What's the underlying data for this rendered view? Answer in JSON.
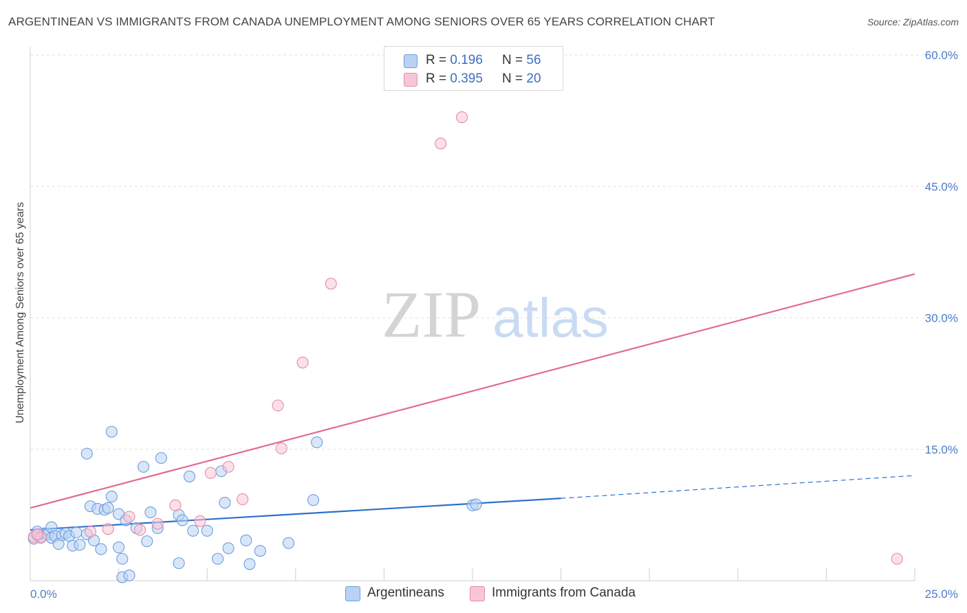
{
  "header": {
    "title": "ARGENTINEAN VS IMMIGRANTS FROM CANADA UNEMPLOYMENT AMONG SENIORS OVER 65 YEARS CORRELATION CHART",
    "source": "Source: ZipAtlas.com"
  },
  "watermark": {
    "zip": "ZIP",
    "atlas": "atlas"
  },
  "legend": {
    "r_label": "R =",
    "n_label": "N =",
    "series": [
      {
        "name": "Argentineans",
        "r": "0.196",
        "n": "56",
        "color": "#6b9ee0",
        "fill": "#b9d2f3"
      },
      {
        "name": "Immigrants from Canada",
        "r": "0.395",
        "n": "20",
        "color": "#e889aa",
        "fill": "#f7c6d6"
      }
    ]
  },
  "chart_data": {
    "type": "scatter",
    "title": "ARGENTINEAN VS IMMIGRANTS FROM CANADA UNEMPLOYMENT AMONG SENIORS OVER 65 YEARS CORRELATION CHART",
    "xlabel": "",
    "ylabel": "Unemployment Among Seniors over 65 years",
    "xlim": [
      0,
      25
    ],
    "ylim": [
      0,
      60
    ],
    "x_ticks": [
      "0.0%",
      "25.0%"
    ],
    "y_ticks": [
      {
        "value": 15,
        "label": "15.0%"
      },
      {
        "value": 30,
        "label": "30.0%"
      },
      {
        "value": 45,
        "label": "45.0%"
      },
      {
        "value": 60,
        "label": "60.0%"
      }
    ],
    "gridlines": [
      15,
      30,
      45,
      60
    ],
    "series": [
      {
        "name": "Argentineans",
        "r": 0.196,
        "n": 56,
        "points": [
          [
            0.1,
            4.8
          ],
          [
            0.2,
            5.2
          ],
          [
            0.3,
            5.0
          ],
          [
            0.4,
            5.4
          ],
          [
            0.5,
            5.3
          ],
          [
            0.6,
            6.1
          ],
          [
            0.6,
            4.9
          ],
          [
            0.7,
            5.1
          ],
          [
            0.8,
            4.2
          ],
          [
            0.9,
            5.2
          ],
          [
            1.0,
            5.4
          ],
          [
            1.1,
            5.1
          ],
          [
            1.2,
            4.0
          ],
          [
            1.3,
            5.5
          ],
          [
            1.6,
            5.3
          ],
          [
            1.4,
            4.1
          ],
          [
            1.6,
            14.5
          ],
          [
            1.7,
            8.5
          ],
          [
            1.8,
            4.6
          ],
          [
            1.9,
            8.2
          ],
          [
            2.0,
            3.6
          ],
          [
            2.1,
            8.1
          ],
          [
            2.2,
            8.3
          ],
          [
            2.3,
            9.6
          ],
          [
            2.3,
            17.0
          ],
          [
            2.5,
            7.6
          ],
          [
            2.5,
            3.8
          ],
          [
            2.6,
            0.4
          ],
          [
            2.6,
            2.5
          ],
          [
            2.7,
            6.9
          ],
          [
            2.8,
            0.6
          ],
          [
            3.0,
            6.0
          ],
          [
            3.2,
            13.0
          ],
          [
            3.3,
            4.5
          ],
          [
            3.4,
            7.8
          ],
          [
            3.6,
            6.0
          ],
          [
            3.7,
            14.0
          ],
          [
            4.2,
            2.0
          ],
          [
            4.2,
            7.5
          ],
          [
            4.3,
            6.9
          ],
          [
            4.5,
            11.9
          ],
          [
            4.6,
            5.7
          ],
          [
            5.0,
            5.7
          ],
          [
            5.3,
            2.5
          ],
          [
            5.4,
            12.5
          ],
          [
            5.5,
            8.9
          ],
          [
            5.6,
            3.7
          ],
          [
            6.1,
            4.6
          ],
          [
            6.2,
            1.9
          ],
          [
            6.5,
            3.4
          ],
          [
            7.3,
            4.3
          ],
          [
            8.0,
            9.2
          ],
          [
            8.1,
            15.8
          ],
          [
            12.5,
            8.6
          ],
          [
            12.6,
            8.7
          ],
          [
            0.2,
            5.6
          ]
        ],
        "trend_solid": [
          [
            0,
            5.8
          ],
          [
            15,
            9.4
          ]
        ],
        "trend_dashed": [
          [
            15,
            9.4
          ],
          [
            25,
            12.0
          ]
        ]
      },
      {
        "name": "Immigrants from Canada",
        "r": 0.395,
        "n": 20,
        "points": [
          [
            0.1,
            5.0
          ],
          [
            0.3,
            4.9
          ],
          [
            1.7,
            5.6
          ],
          [
            2.2,
            5.9
          ],
          [
            2.8,
            7.3
          ],
          [
            3.1,
            5.8
          ],
          [
            3.6,
            6.5
          ],
          [
            4.1,
            8.6
          ],
          [
            4.8,
            6.8
          ],
          [
            5.1,
            12.3
          ],
          [
            5.6,
            13.0
          ],
          [
            6.0,
            9.3
          ],
          [
            7.0,
            20.0
          ],
          [
            7.1,
            15.1
          ],
          [
            7.7,
            24.9
          ],
          [
            8.5,
            33.9
          ],
          [
            11.6,
            49.9
          ],
          [
            12.2,
            52.9
          ],
          [
            24.5,
            2.5
          ],
          [
            0.2,
            5.3
          ]
        ],
        "trend_solid": [
          [
            0,
            8.3
          ],
          [
            25,
            35.0
          ]
        ]
      }
    ]
  }
}
